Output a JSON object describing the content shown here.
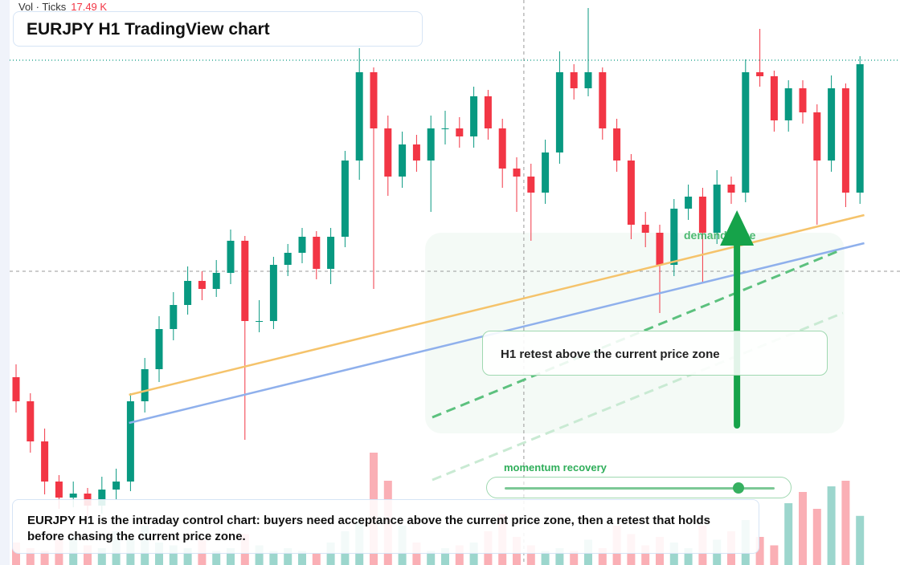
{
  "chart_data": {
    "type": "candlestick",
    "title": "EURJPY H1 TradingView chart",
    "ylim": [
      0,
      704
    ],
    "up_color": "#089981",
    "down_color": "#f23645",
    "open": [
      234,
      204,
      154,
      104,
      84,
      89,
      74,
      94,
      104,
      204,
      244,
      294,
      324,
      354,
      344,
      364,
      404,
      304,
      304,
      374,
      389,
      409,
      369,
      409,
      504,
      614,
      544,
      484,
      524,
      504,
      544,
      544,
      534,
      584,
      544,
      494,
      484,
      464,
      514,
      614,
      594,
      614,
      544,
      504,
      424,
      414,
      374,
      444,
      459,
      414,
      474,
      464,
      614,
      609,
      554,
      594,
      564,
      504,
      594,
      464
    ],
    "high": [
      250,
      214,
      170,
      112,
      104,
      96,
      110,
      120,
      214,
      258,
      310,
      340,
      372,
      366,
      380,
      418,
      410,
      330,
      384,
      400,
      420,
      416,
      420,
      516,
      644,
      620,
      560,
      540,
      536,
      560,
      566,
      558,
      596,
      592,
      556,
      508,
      500,
      530,
      640,
      624,
      694,
      620,
      556,
      512,
      440,
      424,
      456,
      474,
      470,
      492,
      484,
      630,
      668,
      616,
      604,
      604,
      574,
      610,
      600,
      634
    ],
    "low": [
      190,
      140,
      88,
      70,
      72,
      60,
      64,
      82,
      92,
      190,
      228,
      280,
      312,
      330,
      334,
      350,
      156,
      290,
      294,
      360,
      376,
      356,
      350,
      396,
      480,
      344,
      460,
      470,
      490,
      440,
      524,
      520,
      520,
      530,
      470,
      440,
      404,
      450,
      500,
      580,
      584,
      530,
      490,
      406,
      396,
      314,
      360,
      430,
      352,
      400,
      450,
      452,
      596,
      540,
      540,
      550,
      424,
      490,
      446,
      450
    ],
    "close": [
      204,
      154,
      104,
      84,
      89,
      74,
      94,
      104,
      204,
      244,
      294,
      324,
      354,
      344,
      364,
      404,
      304,
      304,
      374,
      389,
      409,
      369,
      409,
      504,
      614,
      544,
      484,
      524,
      504,
      544,
      544,
      534,
      584,
      544,
      494,
      484,
      464,
      514,
      614,
      594,
      614,
      544,
      504,
      424,
      414,
      374,
      444,
      459,
      414,
      474,
      464,
      614,
      609,
      554,
      594,
      564,
      504,
      594,
      464,
      624
    ],
    "volume": {
      "name": "Vol · Ticks",
      "ylim": [
        0,
        50
      ],
      "last_label": "17.49 K",
      "values": [
        8,
        6,
        5,
        9,
        10,
        7,
        6,
        12,
        9,
        14,
        8,
        7,
        6,
        9,
        5,
        6,
        11,
        7,
        5,
        6,
        5,
        4,
        8,
        12,
        16,
        40,
        30,
        14,
        8,
        5,
        6,
        7,
        8,
        12,
        18,
        10,
        7,
        5,
        6,
        5,
        9,
        6,
        14,
        11,
        7,
        10,
        8,
        6,
        14,
        9,
        12,
        16,
        10,
        7,
        22,
        26,
        20,
        28,
        30,
        17.49
      ]
    },
    "price_line": {
      "value": 629,
      "color": "#089981"
    },
    "crosshair": {
      "x": 35.5,
      "y": 366
    },
    "trendlines": [
      {
        "color": "#f5c36b",
        "from": [
          7.9,
          212
        ],
        "to": [
          59.3,
          436
        ],
        "dash": false
      },
      {
        "color": "#8fb0ec",
        "from": [
          7.9,
          177
        ],
        "to": [
          59.3,
          401
        ],
        "dash": false
      },
      {
        "color": "#5cc17e",
        "from": [
          29.1,
          184
        ],
        "to": [
          57.6,
          392
        ],
        "dash": true
      },
      {
        "color": "#c9ead3",
        "from": [
          29.1,
          106
        ],
        "to": [
          57.8,
          314
        ],
        "dash": true
      }
    ],
    "zone": {
      "label": "demand zone",
      "x": [
        28.6,
        57.9
      ],
      "y": [
        164,
        414
      ],
      "color": "#22a447"
    },
    "arrow": {
      "x": 50.4,
      "from": 174,
      "to": 442,
      "color": "#16a34a"
    },
    "annotations": [
      "H1 retest above the current price zone",
      "momentum recovery"
    ],
    "caption": "EURJPY H1 is the intraday control chart: buyers need acceptance above the current price zone, then a retest that holds before chasing the current price zone."
  }
}
